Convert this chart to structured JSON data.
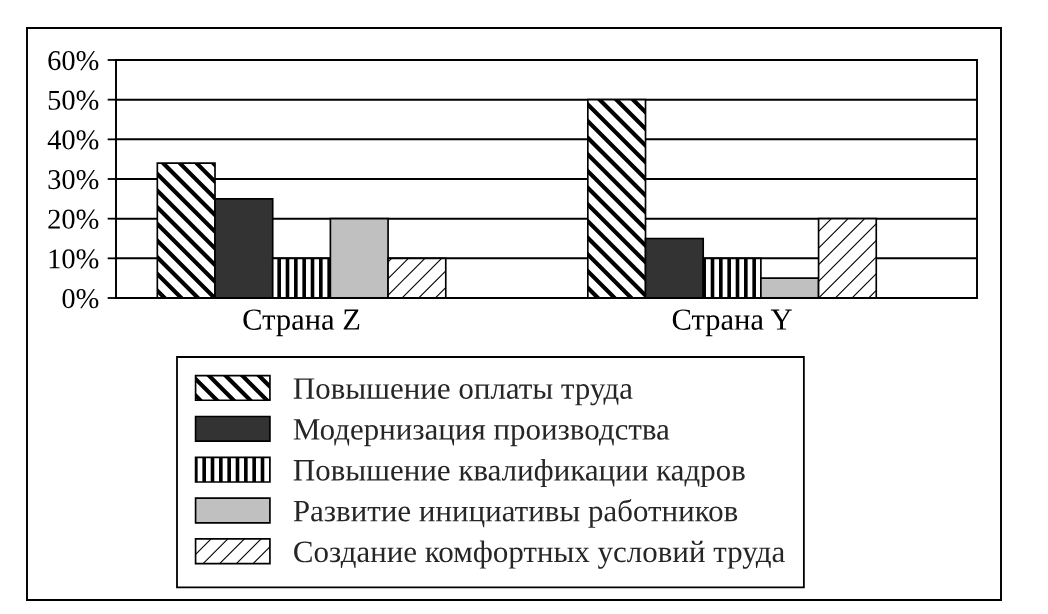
{
  "chart_data": {
    "type": "bar",
    "categories": [
      "Страна Z",
      "Страна Y"
    ],
    "series": [
      {
        "name": "Повышение оплаты труда",
        "color": "#000000",
        "values": [
          34,
          50
        ]
      },
      {
        "name": "Модернизация производства",
        "color": "#333333",
        "values": [
          25,
          15
        ]
      },
      {
        "name": "Повышение квалификации кадров",
        "color": "#000000",
        "values": [
          10,
          10
        ]
      },
      {
        "name": "Развитие инициативы работников",
        "color": "#c0c0c0",
        "values": [
          20,
          5
        ]
      },
      {
        "name": "Создание комфортных условий труда",
        "color": "#000000",
        "values": [
          10,
          20
        ]
      }
    ],
    "ylim": [
      0,
      60
    ],
    "yticks": [
      {
        "value": 0,
        "label": "0%"
      },
      {
        "value": 10,
        "label": "10%"
      },
      {
        "value": 20,
        "label": "20%"
      },
      {
        "value": 30,
        "label": "30%"
      },
      {
        "value": 40,
        "label": "40%"
      },
      {
        "value": 50,
        "label": "50%"
      },
      {
        "value": 60,
        "label": "60%"
      }
    ],
    "grid": "y",
    "legend": "bottom"
  }
}
